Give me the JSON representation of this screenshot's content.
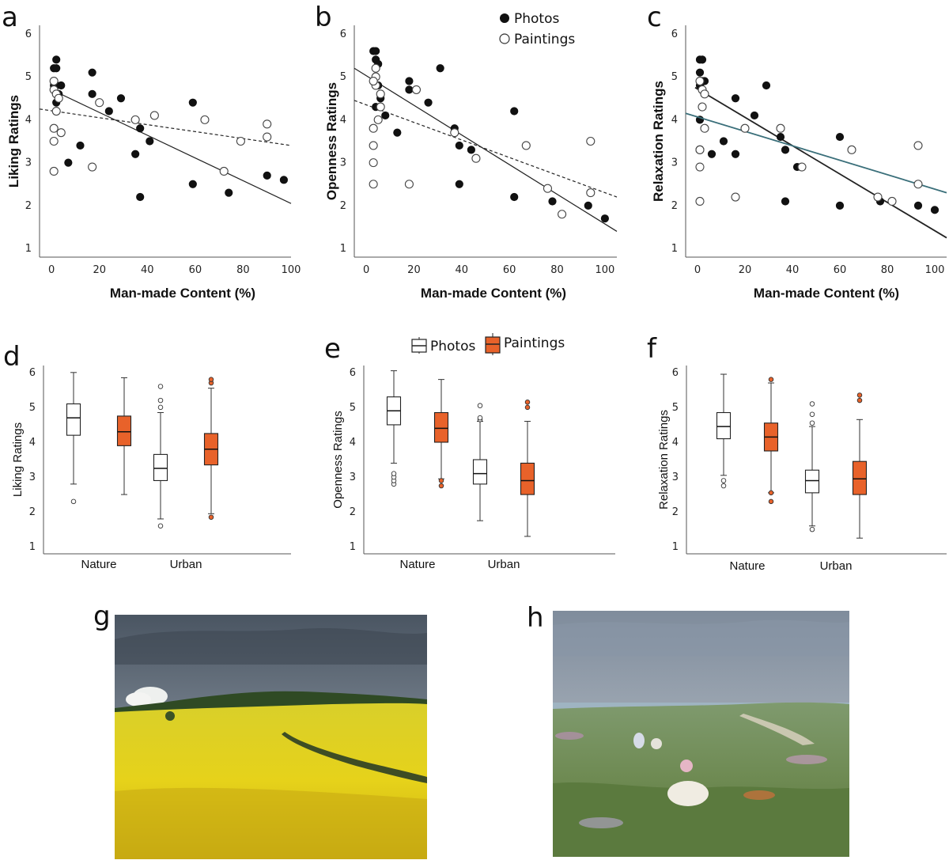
{
  "panels": [
    {
      "letter": "a"
    },
    {
      "letter": "b"
    },
    {
      "letter": "c"
    },
    {
      "letter": "d"
    },
    {
      "letter": "e"
    },
    {
      "letter": "f"
    },
    {
      "letter": "g"
    },
    {
      "letter": "h"
    }
  ],
  "legend_scatter": {
    "photos": "Photos",
    "paintings": "Paintings"
  },
  "legend_box": {
    "photos": "Photos",
    "paintings": "Paintings"
  },
  "colors": {
    "photo_marker": "#111111",
    "painting_fill": "#e8622a",
    "relaxation_painting_line": "#3a6f7a"
  },
  "images": {
    "g": {
      "description": "photo-of-rapeseed-field",
      "icon": "landscape-photo"
    },
    "h": {
      "description": "impressionist-painting-of-meadow",
      "icon": "landscape-painting"
    }
  },
  "chart_data": [
    {
      "panel": "a",
      "type": "scatter",
      "xlabel": "Man-made Content (%)",
      "ylabel": "Liking Ratings",
      "xlim": [
        -5,
        100
      ],
      "ylim": [
        0.8,
        6.2
      ],
      "xticks": [
        0,
        20,
        40,
        60,
        80,
        100
      ],
      "yticks": [
        1,
        2,
        3,
        4,
        5,
        6
      ],
      "series": [
        {
          "name": "Photos",
          "points": [
            [
              2,
              5.4
            ],
            [
              1,
              5.2
            ],
            [
              2,
              5.2
            ],
            [
              1,
              4.8
            ],
            [
              2,
              4.8
            ],
            [
              4,
              4.8
            ],
            [
              3,
              4.6
            ],
            [
              2,
              4.4
            ],
            [
              7,
              3.0
            ],
            [
              12,
              3.4
            ],
            [
              17,
              5.1
            ],
            [
              17,
              4.6
            ],
            [
              24,
              4.2
            ],
            [
              29,
              4.5
            ],
            [
              35,
              3.2
            ],
            [
              37,
              3.8
            ],
            [
              37,
              2.2
            ],
            [
              41,
              3.5
            ],
            [
              59,
              2.5
            ],
            [
              59,
              4.4
            ],
            [
              74,
              2.3
            ],
            [
              90,
              2.7
            ],
            [
              97,
              2.6
            ]
          ],
          "fit": {
            "x": [
              0,
              100
            ],
            "y": [
              4.7,
              2.05
            ],
            "style": "solid"
          }
        },
        {
          "name": "Paintings",
          "points": [
            [
              1,
              4.9
            ],
            [
              1,
              4.7
            ],
            [
              2,
              4.6
            ],
            [
              3,
              4.5
            ],
            [
              2,
              4.2
            ],
            [
              1,
              3.8
            ],
            [
              4,
              3.7
            ],
            [
              1,
              3.5
            ],
            [
              1,
              2.8
            ],
            [
              17,
              2.9
            ],
            [
              20,
              4.4
            ],
            [
              35,
              4.0
            ],
            [
              43,
              4.1
            ],
            [
              64,
              4.0
            ],
            [
              72,
              2.8
            ],
            [
              79,
              3.5
            ],
            [
              90,
              3.9
            ],
            [
              90,
              3.6
            ]
          ],
          "fit": {
            "x": [
              -5,
              100
            ],
            "y": [
              4.25,
              3.4
            ],
            "style": "dashed"
          }
        }
      ]
    },
    {
      "panel": "b",
      "type": "scatter",
      "xlabel": "Man-made Content (%)",
      "ylabel": "Openness Ratings",
      "xlim": [
        -5,
        105
      ],
      "ylim": [
        0.8,
        6.2
      ],
      "xticks": [
        0,
        20,
        40,
        60,
        80,
        100
      ],
      "yticks": [
        1,
        2,
        3,
        4,
        5,
        6
      ],
      "series": [
        {
          "name": "Photos",
          "points": [
            [
              3,
              5.6
            ],
            [
              4,
              5.6
            ],
            [
              4,
              5.4
            ],
            [
              5,
              5.3
            ],
            [
              4,
              5.0
            ],
            [
              5,
              4.8
            ],
            [
              6,
              4.5
            ],
            [
              4,
              4.3
            ],
            [
              8,
              4.1
            ],
            [
              13,
              3.7
            ],
            [
              18,
              4.9
            ],
            [
              18,
              4.7
            ],
            [
              26,
              4.4
            ],
            [
              31,
              5.2
            ],
            [
              37,
              3.8
            ],
            [
              39,
              3.4
            ],
            [
              39,
              2.5
            ],
            [
              44,
              3.3
            ],
            [
              62,
              4.2
            ],
            [
              62,
              2.2
            ],
            [
              78,
              2.1
            ],
            [
              93,
              2.0
            ],
            [
              100,
              1.7
            ]
          ],
          "fit": {
            "x": [
              -5,
              105
            ],
            "y": [
              5.2,
              1.4
            ],
            "style": "solid"
          }
        },
        {
          "name": "Paintings",
          "points": [
            [
              4,
              5.2
            ],
            [
              4,
              5.0
            ],
            [
              4,
              4.8
            ],
            [
              3,
              4.9
            ],
            [
              6,
              4.6
            ],
            [
              6,
              4.3
            ],
            [
              5,
              4.0
            ],
            [
              3,
              3.8
            ],
            [
              3,
              3.4
            ],
            [
              3,
              3.0
            ],
            [
              3,
              2.5
            ],
            [
              18,
              2.5
            ],
            [
              21,
              4.7
            ],
            [
              37,
              3.7
            ],
            [
              46,
              3.1
            ],
            [
              67,
              3.4
            ],
            [
              76,
              2.4
            ],
            [
              82,
              1.8
            ],
            [
              94,
              3.5
            ],
            [
              94,
              2.3
            ]
          ],
          "fit": {
            "x": [
              -5,
              105
            ],
            "y": [
              4.45,
              2.2
            ],
            "style": "dashed"
          }
        }
      ]
    },
    {
      "panel": "c",
      "type": "scatter",
      "xlabel": "Man-made Content (%)",
      "ylabel": "Relaxation Ratings",
      "xlim": [
        -5,
        105
      ],
      "ylim": [
        0.8,
        6.2
      ],
      "xticks": [
        0,
        20,
        40,
        60,
        80,
        100
      ],
      "yticks": [
        1,
        2,
        3,
        4,
        5,
        6
      ],
      "series": [
        {
          "name": "Photos",
          "points": [
            [
              1,
              5.4
            ],
            [
              2,
              5.4
            ],
            [
              1,
              5.1
            ],
            [
              2,
              4.9
            ],
            [
              3,
              4.9
            ],
            [
              1,
              4.8
            ],
            [
              3,
              4.6
            ],
            [
              1,
              4.0
            ],
            [
              6,
              3.2
            ],
            [
              11,
              3.5
            ],
            [
              16,
              4.5
            ],
            [
              16,
              3.2
            ],
            [
              24,
              4.1
            ],
            [
              29,
              4.8
            ],
            [
              35,
              3.6
            ],
            [
              37,
              3.3
            ],
            [
              37,
              2.1
            ],
            [
              42,
              2.9
            ],
            [
              60,
              3.6
            ],
            [
              60,
              2.0
            ],
            [
              77,
              2.1
            ],
            [
              93,
              2.0
            ],
            [
              100,
              1.9
            ]
          ],
          "fit": {
            "x": [
              -1,
              105
            ],
            "y": [
              4.75,
              1.25
            ],
            "style": "solid"
          }
        },
        {
          "name": "Paintings",
          "points": [
            [
              1,
              4.9
            ],
            [
              2,
              4.7
            ],
            [
              3,
              4.6
            ],
            [
              2,
              4.3
            ],
            [
              3,
              3.8
            ],
            [
              1,
              3.3
            ],
            [
              1,
              3.3
            ],
            [
              1,
              2.9
            ],
            [
              1,
              2.1
            ],
            [
              16,
              2.2
            ],
            [
              20,
              3.8
            ],
            [
              35,
              3.8
            ],
            [
              44,
              2.9
            ],
            [
              65,
              3.3
            ],
            [
              76,
              2.2
            ],
            [
              82,
              2.1
            ],
            [
              93,
              3.4
            ],
            [
              93,
              2.5
            ]
          ],
          "fit": {
            "x": [
              -5,
              105
            ],
            "y": [
              4.15,
              2.3
            ],
            "style": "solid"
          }
        }
      ]
    },
    {
      "panel": "d",
      "type": "box",
      "ylabel": "Liking Ratings",
      "categories": [
        "Nature",
        "Urban"
      ],
      "ylim": [
        0.8,
        6.2
      ],
      "yticks": [
        1,
        2,
        3,
        4,
        5,
        6
      ],
      "boxes": [
        {
          "group": "Nature",
          "series": "Photos",
          "lw": 2.8,
          "q1": 4.2,
          "median": 4.7,
          "q3": 5.1,
          "uw": 6.0,
          "outliers": [
            2.3
          ]
        },
        {
          "group": "Nature",
          "series": "Paintings",
          "lw": 2.5,
          "q1": 3.9,
          "median": 4.3,
          "q3": 4.75,
          "uw": 5.85,
          "outliers": []
        },
        {
          "group": "Urban",
          "series": "Photos",
          "lw": 1.8,
          "q1": 2.9,
          "median": 3.25,
          "q3": 3.65,
          "uw": 4.85,
          "outliers": [
            1.6,
            5.0,
            5.2,
            5.6
          ]
        },
        {
          "group": "Urban",
          "series": "Paintings",
          "lw": 1.95,
          "q1": 3.35,
          "median": 3.8,
          "q3": 4.25,
          "uw": 5.55,
          "outliers": [
            1.85,
            5.7,
            5.8
          ]
        }
      ]
    },
    {
      "panel": "e",
      "type": "box",
      "ylabel": "Openness Ratings",
      "categories": [
        "Nature",
        "Urban"
      ],
      "ylim": [
        0.8,
        6.2
      ],
      "yticks": [
        1,
        2,
        3,
        4,
        5,
        6
      ],
      "boxes": [
        {
          "group": "Nature",
          "series": "Photos",
          "lw": 3.4,
          "q1": 4.5,
          "median": 4.9,
          "q3": 5.3,
          "uw": 6.05,
          "outliers": [
            2.8,
            2.9,
            3.0,
            3.1
          ]
        },
        {
          "group": "Nature",
          "series": "Paintings",
          "lw": 2.95,
          "q1": 4.0,
          "median": 4.4,
          "q3": 4.85,
          "uw": 5.8,
          "outliers": [
            2.75,
            2.9
          ]
        },
        {
          "group": "Urban",
          "series": "Photos",
          "lw": 1.75,
          "q1": 2.8,
          "median": 3.1,
          "q3": 3.5,
          "uw": 4.6,
          "outliers": [
            4.65,
            4.7,
            5.05
          ]
        },
        {
          "group": "Urban",
          "series": "Paintings",
          "lw": 1.3,
          "q1": 2.5,
          "median": 2.9,
          "q3": 3.4,
          "uw": 4.6,
          "outliers": [
            5.0,
            5.15
          ]
        }
      ]
    },
    {
      "panel": "f",
      "type": "box",
      "ylabel": "Relaxation Ratings",
      "categories": [
        "Nature",
        "Urban"
      ],
      "ylim": [
        0.8,
        6.2
      ],
      "yticks": [
        1,
        2,
        3,
        4,
        5,
        6
      ],
      "boxes": [
        {
          "group": "Nature",
          "series": "Photos",
          "lw": 3.05,
          "q1": 4.1,
          "median": 4.45,
          "q3": 4.85,
          "uw": 5.95,
          "outliers": [
            2.75,
            2.9
          ]
        },
        {
          "group": "Nature",
          "series": "Paintings",
          "lw": 2.55,
          "q1": 3.75,
          "median": 4.15,
          "q3": 4.55,
          "uw": 5.7,
          "outliers": [
            2.3,
            2.55,
            5.8
          ]
        },
        {
          "group": "Urban",
          "series": "Photos",
          "lw": 1.6,
          "q1": 2.55,
          "median": 2.9,
          "q3": 3.2,
          "uw": 4.45,
          "outliers": [
            1.5,
            4.55,
            4.8,
            5.1
          ]
        },
        {
          "group": "Urban",
          "series": "Paintings",
          "lw": 1.25,
          "q1": 2.5,
          "median": 2.95,
          "q3": 3.45,
          "uw": 4.65,
          "outliers": [
            5.2,
            5.35
          ]
        }
      ]
    }
  ]
}
